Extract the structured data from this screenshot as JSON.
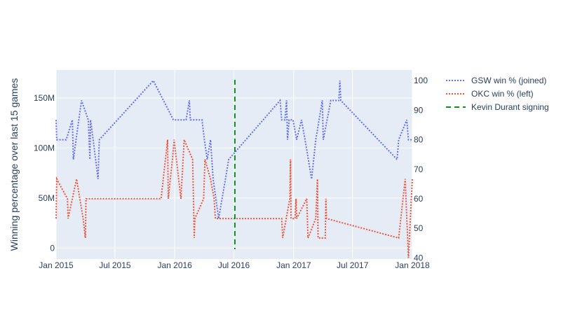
{
  "chart_data": {
    "type": "line",
    "title": "",
    "y_left_label": "Winning percentage over last 15 games",
    "x_ticks": [
      "Jan 2015",
      "Jul 2015",
      "Jan 2016",
      "Jul 2016",
      "Jan 2017",
      "Jul 2017",
      "Jan 2018"
    ],
    "x_tick_dates": [
      "2015-01-01",
      "2015-07-01",
      "2016-01-01",
      "2016-07-01",
      "2017-01-01",
      "2017-07-01",
      "2018-01-01"
    ],
    "x_range": [
      "2015-01-01",
      "2018-01-01"
    ],
    "y_left_ticks": [
      {
        "value": 0,
        "label": "0"
      },
      {
        "value": 50000000,
        "label": "50M"
      },
      {
        "value": 100000000,
        "label": "100M"
      },
      {
        "value": 150000000,
        "label": "150M"
      }
    ],
    "y_left_range": [
      -11000000,
      178000000
    ],
    "y_right_ticks": [
      40,
      50,
      60,
      70,
      80,
      90,
      100
    ],
    "y_right_range": [
      39.6,
      103.6
    ],
    "gridlines": true,
    "legend_position": "right",
    "series": [
      {
        "name": "GSW win % (joined)",
        "axis": "right",
        "color": "#636efa",
        "dash": "dot",
        "points": [
          [
            "2015-01-01",
            86.7
          ],
          [
            "2015-01-03",
            80
          ],
          [
            "2015-02-01",
            80
          ],
          [
            "2015-02-20",
            86.7
          ],
          [
            "2015-02-23",
            73.3
          ],
          [
            "2015-03-20",
            93.3
          ],
          [
            "2015-04-10",
            86.7
          ],
          [
            "2015-04-15",
            73.3
          ],
          [
            "2015-04-17",
            86.7
          ],
          [
            "2015-04-25",
            80
          ],
          [
            "2015-05-10",
            66.7
          ],
          [
            "2015-05-14",
            80
          ],
          [
            "2015-10-27",
            100
          ],
          [
            "2015-12-28",
            86.7
          ],
          [
            "2016-02-05",
            86.7
          ],
          [
            "2016-02-15",
            93.3
          ],
          [
            "2016-02-18",
            86.7
          ],
          [
            "2016-03-25",
            86.7
          ],
          [
            "2016-04-01",
            80
          ],
          [
            "2016-04-10",
            73.3
          ],
          [
            "2016-04-20",
            80
          ],
          [
            "2016-04-28",
            66.7
          ],
          [
            "2016-05-15",
            53.3
          ],
          [
            "2016-06-05",
            66.7
          ],
          [
            "2016-06-15",
            73.3
          ],
          [
            "2016-11-20",
            93.3
          ],
          [
            "2016-11-25",
            86.7
          ],
          [
            "2016-12-05",
            86.7
          ],
          [
            "2016-12-10",
            93.3
          ],
          [
            "2016-12-13",
            80
          ],
          [
            "2016-12-18",
            86.7
          ],
          [
            "2016-12-30",
            86.7
          ],
          [
            "2017-01-10",
            80
          ],
          [
            "2017-01-25",
            86.7
          ],
          [
            "2017-02-05",
            80
          ],
          [
            "2017-02-15",
            73.3
          ],
          [
            "2017-02-25",
            66.7
          ],
          [
            "2017-03-10",
            80
          ],
          [
            "2017-03-30",
            93.3
          ],
          [
            "2017-04-02",
            80
          ],
          [
            "2017-04-25",
            93.3
          ],
          [
            "2017-05-20",
            93.3
          ],
          [
            "2017-05-23",
            100
          ],
          [
            "2017-05-26",
            93.3
          ],
          [
            "2017-11-15",
            73.3
          ],
          [
            "2017-11-20",
            80
          ],
          [
            "2017-12-15",
            86.7
          ],
          [
            "2017-12-20",
            80
          ],
          [
            "2018-01-01",
            80
          ]
        ]
      },
      {
        "name": "OKC win % (left)",
        "axis": "right",
        "color": "#ef553b",
        "dash": "dot",
        "points": [
          [
            "2015-01-01",
            53.3
          ],
          [
            "2015-01-03",
            66.7
          ],
          [
            "2015-02-05",
            60
          ],
          [
            "2015-02-07",
            53.3
          ],
          [
            "2015-03-05",
            66.7
          ],
          [
            "2015-03-25",
            53.3
          ],
          [
            "2015-04-01",
            46.7
          ],
          [
            "2015-04-03",
            60
          ],
          [
            "2015-11-20",
            60
          ],
          [
            "2015-12-10",
            80
          ],
          [
            "2015-12-12",
            60
          ],
          [
            "2015-12-25",
            73.3
          ],
          [
            "2015-12-30",
            80
          ],
          [
            "2016-01-20",
            60
          ],
          [
            "2016-01-30",
            80
          ],
          [
            "2016-02-25",
            73.3
          ],
          [
            "2016-03-01",
            46.7
          ],
          [
            "2016-03-03",
            53.3
          ],
          [
            "2016-03-30",
            60
          ],
          [
            "2016-04-03",
            73.3
          ],
          [
            "2016-04-20",
            66.7
          ],
          [
            "2016-05-01",
            60
          ],
          [
            "2016-05-05",
            53.3
          ],
          [
            "2016-06-01",
            53.3
          ],
          [
            "2016-11-25",
            53.3
          ],
          [
            "2016-11-28",
            46.7
          ],
          [
            "2016-12-20",
            60
          ],
          [
            "2016-12-22",
            73.3
          ],
          [
            "2016-12-24",
            53.3
          ],
          [
            "2017-01-05",
            53.3
          ],
          [
            "2017-01-08",
            60
          ],
          [
            "2017-01-10",
            53.3
          ],
          [
            "2017-02-10",
            60
          ],
          [
            "2017-02-14",
            46.7
          ],
          [
            "2017-03-10",
            53.3
          ],
          [
            "2017-03-15",
            66.7
          ],
          [
            "2017-03-17",
            46.7
          ],
          [
            "2017-04-08",
            46.7
          ],
          [
            "2017-04-10",
            60
          ],
          [
            "2017-04-12",
            53.3
          ],
          [
            "2017-11-20",
            46.7
          ],
          [
            "2017-12-10",
            66.7
          ],
          [
            "2017-12-20",
            40
          ],
          [
            "2018-01-01",
            66.7
          ]
        ]
      }
    ],
    "marker_line": {
      "name": "Kevin Durant signing",
      "date": "2016-07-04",
      "color": "#0f8a1e",
      "dash": "dash"
    }
  }
}
